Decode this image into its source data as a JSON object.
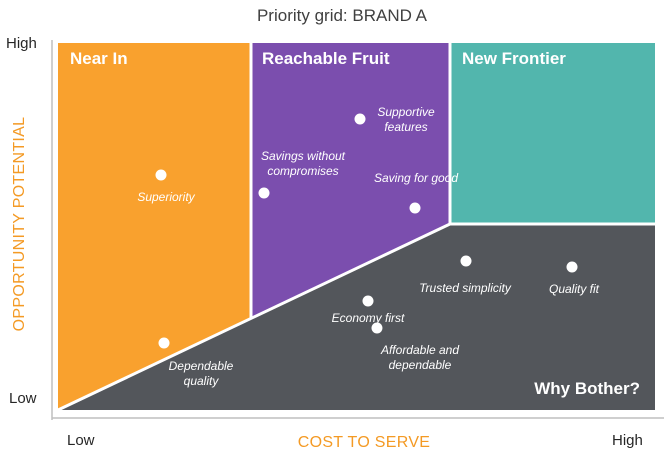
{
  "title": "Priority grid:  BRAND A",
  "axes": {
    "y_title": "OPPORTUNITY POTENTIAL",
    "y_high": "High",
    "y_low": "Low",
    "x_title": "COST TO SERVE",
    "x_low": "Low",
    "x_high": "High"
  },
  "zones": {
    "near_in": "Near In",
    "reachable_fruit": "Reachable Fruit",
    "new_frontier": "New Frontier",
    "why_bother": "Why Bother?"
  },
  "points": [
    {
      "id": "superiority",
      "lines": [
        "Superiority"
      ]
    },
    {
      "id": "savings-without-compromises",
      "lines": [
        "Savings without",
        "compromises"
      ]
    },
    {
      "id": "supportive-features",
      "lines": [
        "Supportive",
        "features"
      ]
    },
    {
      "id": "saving-for-good",
      "lines": [
        "Saving for good"
      ]
    },
    {
      "id": "dependable-quality",
      "lines": [
        "Dependable",
        "quality"
      ]
    },
    {
      "id": "economy-first",
      "lines": [
        "Economy first"
      ]
    },
    {
      "id": "affordable-and-dependable",
      "lines": [
        "Affordable and",
        "dependable"
      ]
    },
    {
      "id": "trusted-simplicity",
      "lines": [
        "Trusted simplicity"
      ]
    },
    {
      "id": "quality-fit",
      "lines": [
        "Quality fit"
      ]
    }
  ],
  "colors": {
    "near_in": "#F9A12E",
    "reachable_fruit": "#7B4EAE",
    "new_frontier": "#52B6AD",
    "why_bother": "#53565B",
    "axis_title": "#F49A24",
    "axis_line": "#BFBFBF",
    "divider": "#FFFFFF"
  }
}
